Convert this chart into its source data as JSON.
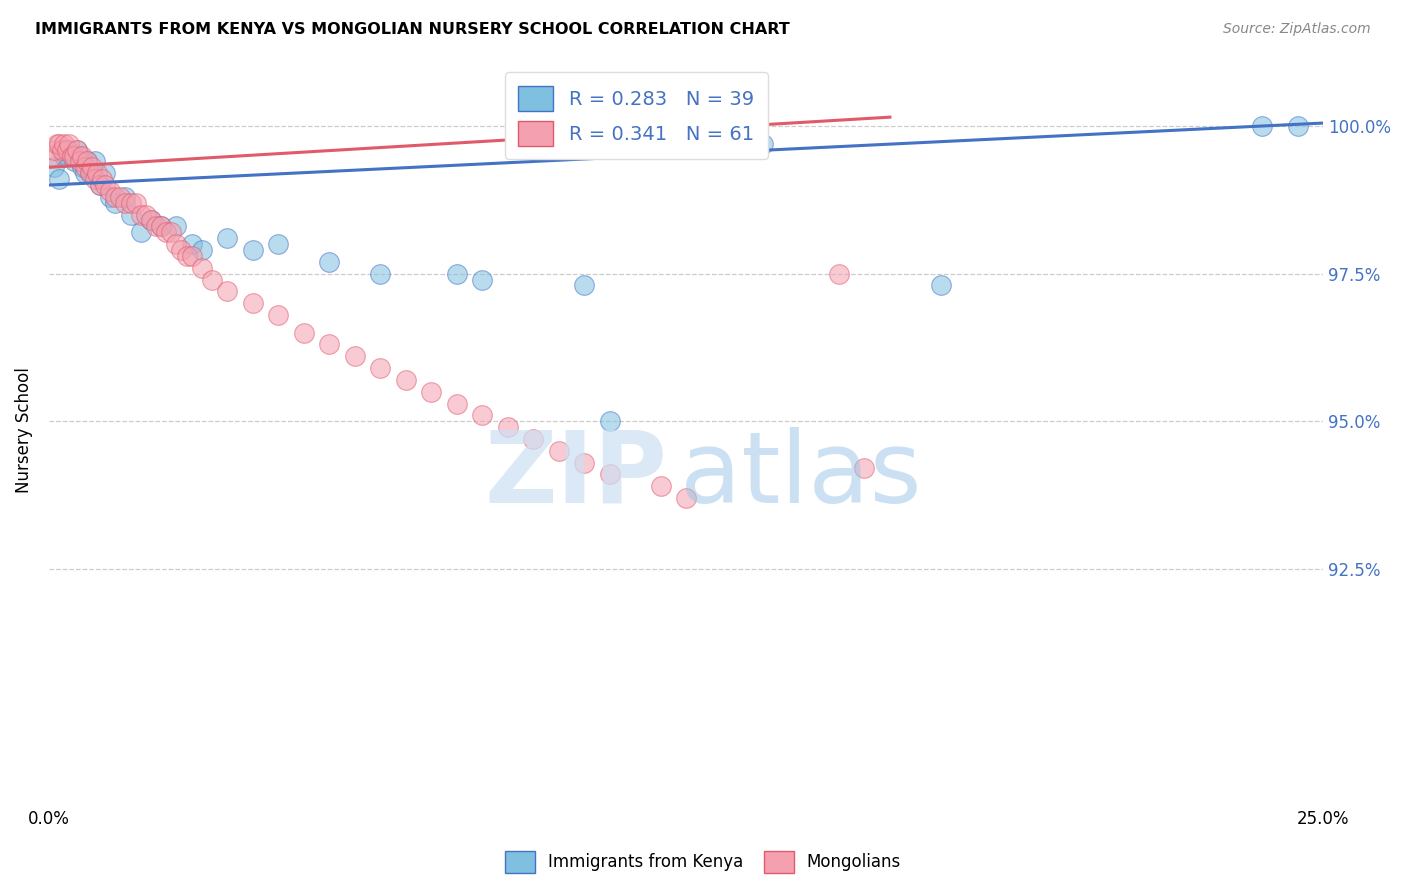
{
  "title": "IMMIGRANTS FROM KENYA VS MONGOLIAN NURSERY SCHOOL CORRELATION CHART",
  "source": "Source: ZipAtlas.com",
  "ylabel": "Nursery School",
  "xlim": [
    0.0,
    25.0
  ],
  "ylim": [
    88.5,
    101.2
  ],
  "yticks": [
    92.5,
    95.0,
    97.5,
    100.0
  ],
  "ytick_labels": [
    "92.5%",
    "95.0%",
    "97.5%",
    "100.0%"
  ],
  "xticks": [
    0.0,
    5.0,
    10.0,
    15.0,
    20.0,
    25.0
  ],
  "xtick_labels": [
    "0.0%",
    "",
    "",
    "",
    "",
    "25.0%"
  ],
  "color_blue": "#7fbfdf",
  "color_pink": "#f4a0b0",
  "line_blue": "#4472c4",
  "line_pink": "#e05a6a",
  "blue_scatter_x": [
    0.1,
    0.2,
    0.3,
    0.35,
    0.4,
    0.5,
    0.55,
    0.6,
    0.65,
    0.7,
    0.75,
    0.8,
    0.85,
    0.9,
    1.0,
    1.1,
    1.2,
    1.3,
    1.5,
    1.6,
    1.8,
    2.0,
    2.2,
    2.5,
    2.8,
    3.0,
    3.5,
    4.0,
    4.5,
    5.5,
    6.5,
    8.0,
    8.5,
    10.5,
    11.0,
    14.0,
    17.5,
    23.8,
    24.5
  ],
  "blue_scatter_y": [
    99.3,
    99.1,
    99.5,
    99.5,
    99.6,
    99.4,
    99.6,
    99.5,
    99.3,
    99.2,
    99.4,
    99.2,
    99.2,
    99.4,
    99.0,
    99.2,
    98.8,
    98.7,
    98.8,
    98.5,
    98.2,
    98.4,
    98.3,
    98.3,
    98.0,
    97.9,
    98.1,
    97.9,
    98.0,
    97.7,
    97.5,
    97.5,
    97.4,
    97.3,
    95.0,
    99.7,
    97.3,
    100.0,
    100.0
  ],
  "pink_scatter_x": [
    0.05,
    0.1,
    0.15,
    0.2,
    0.25,
    0.3,
    0.35,
    0.4,
    0.45,
    0.5,
    0.55,
    0.6,
    0.65,
    0.7,
    0.75,
    0.8,
    0.85,
    0.9,
    0.95,
    1.0,
    1.05,
    1.1,
    1.2,
    1.3,
    1.4,
    1.5,
    1.6,
    1.7,
    1.8,
    1.9,
    2.0,
    2.1,
    2.2,
    2.3,
    2.4,
    2.5,
    2.6,
    2.7,
    2.8,
    3.0,
    3.2,
    3.5,
    4.0,
    4.5,
    5.0,
    5.5,
    6.0,
    6.5,
    7.0,
    7.5,
    8.0,
    8.5,
    9.0,
    9.5,
    10.0,
    10.5,
    11.0,
    12.0,
    12.5,
    15.5,
    16.0
  ],
  "pink_scatter_y": [
    99.5,
    99.6,
    99.7,
    99.7,
    99.6,
    99.7,
    99.6,
    99.7,
    99.5,
    99.5,
    99.6,
    99.4,
    99.5,
    99.3,
    99.4,
    99.2,
    99.3,
    99.1,
    99.2,
    99.0,
    99.1,
    99.0,
    98.9,
    98.8,
    98.8,
    98.7,
    98.7,
    98.7,
    98.5,
    98.5,
    98.4,
    98.3,
    98.3,
    98.2,
    98.2,
    98.0,
    97.9,
    97.8,
    97.8,
    97.6,
    97.4,
    97.2,
    97.0,
    96.8,
    96.5,
    96.3,
    96.1,
    95.9,
    95.7,
    95.5,
    95.3,
    95.1,
    94.9,
    94.7,
    94.5,
    94.3,
    94.1,
    93.9,
    93.7,
    97.5,
    94.2
  ],
  "blue_line_x": [
    0.0,
    25.0
  ],
  "blue_line_y": [
    99.0,
    100.05
  ],
  "pink_line_x": [
    0.0,
    16.5
  ],
  "pink_line_y": [
    99.3,
    100.15
  ],
  "watermark_zip_color": "#cce0f5",
  "watermark_atlas_color": "#99c4e8"
}
